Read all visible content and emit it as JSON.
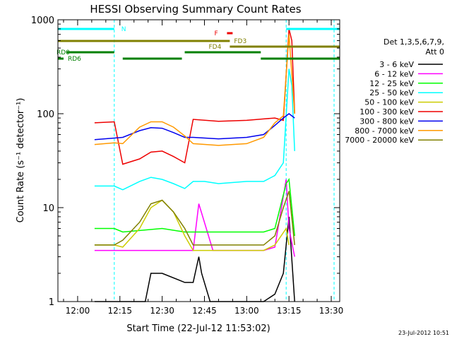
{
  "chart_data": {
    "type": "line",
    "title": "HESSI Observing Summary Count Rates",
    "xlabel": "Start Time (22-Jul-12 11:53:02)",
    "ylabel": "Count Rate (s⁻¹ detector⁻¹)",
    "yscale": "log",
    "ylim": [
      1,
      1000
    ],
    "xlim": [
      "11:53",
      "13:33"
    ],
    "x_ticks": [
      "12:00",
      "12:15",
      "12:30",
      "12:45",
      "13:00",
      "13:15",
      "13:30"
    ],
    "y_ticks": [
      "1",
      "10",
      "100",
      "1000"
    ],
    "legend_title": [
      "Det 1,3,5,6,7,9,",
      "Att 0"
    ],
    "legend_placement": "right",
    "footer_date": "23-Jul-2012 10:51",
    "series": [
      {
        "name": "3 - 6 keV",
        "color": "#000000",
        "x": [
          "12:06",
          "12:13",
          "12:16",
          "12:24",
          "12:26",
          "12:30",
          "12:38",
          "12:41",
          "12:43",
          "12:44",
          "12:47",
          "13:06",
          "13:10",
          "13:13",
          "13:15",
          "13:17"
        ],
        "y": [
          1,
          1,
          1,
          1,
          2,
          2,
          1.6,
          1.6,
          3,
          2,
          1,
          1,
          1.2,
          2,
          8,
          1
        ]
      },
      {
        "name": "6 - 12 keV",
        "color": "#ff00ff",
        "x": [
          "12:06",
          "12:13",
          "12:16",
          "12:30",
          "12:38",
          "12:41",
          "12:43",
          "12:48",
          "13:06",
          "13:10",
          "13:14",
          "13:15",
          "13:17"
        ],
        "y": [
          3.5,
          3.5,
          3.5,
          3.5,
          3.5,
          3.5,
          11,
          3.5,
          3.5,
          3.8,
          20,
          6,
          3
        ]
      },
      {
        "name": "12 - 25 keV",
        "color": "#00ff00",
        "x": [
          "12:06",
          "12:13",
          "12:16",
          "12:30",
          "12:38",
          "12:41",
          "12:48",
          "13:06",
          "13:10",
          "13:14",
          "13:15",
          "13:17"
        ],
        "y": [
          6,
          6,
          5.5,
          6,
          5.5,
          5.5,
          5.5,
          5.5,
          6,
          18,
          20,
          5
        ]
      },
      {
        "name": "25 - 50 keV",
        "color": "#00ffff",
        "x": [
          "12:06",
          "12:13",
          "12:16",
          "12:22",
          "12:26",
          "12:30",
          "12:34",
          "12:38",
          "12:41",
          "12:45",
          "12:50",
          "13:00",
          "13:06",
          "13:10",
          "13:13",
          "13:15",
          "13:16",
          "13:17"
        ],
        "y": [
          17,
          17,
          15.5,
          19,
          21,
          20,
          18,
          16,
          19,
          19,
          18,
          19,
          19,
          22,
          30,
          300,
          200,
          40
        ]
      },
      {
        "name": "50 - 100 keV",
        "color": "#cccc00",
        "x": [
          "12:06",
          "12:13",
          "12:16",
          "12:22",
          "12:26",
          "12:30",
          "12:34",
          "12:38",
          "12:41",
          "13:06",
          "13:10",
          "13:14",
          "13:15"
        ],
        "y": [
          4,
          4,
          3.8,
          6,
          10,
          12,
          9,
          5,
          3.5,
          3.5,
          4,
          6,
          4
        ]
      },
      {
        "name": "100 - 300 keV",
        "color": "#ee0000",
        "x": [
          "12:06",
          "12:13",
          "12:16",
          "12:22",
          "12:26",
          "12:30",
          "12:34",
          "12:38",
          "12:41",
          "12:50",
          "13:00",
          "13:06",
          "13:10",
          "13:13",
          "13:15",
          "13:16",
          "13:17"
        ],
        "y": [
          80,
          82,
          29,
          33,
          39,
          40,
          35,
          30,
          87,
          83,
          85,
          88,
          90,
          85,
          800,
          600,
          100
        ]
      },
      {
        "name": "300 - 800 keV",
        "color": "#0000ee",
        "x": [
          "12:06",
          "12:13",
          "12:16",
          "12:22",
          "12:26",
          "12:30",
          "12:34",
          "12:38",
          "12:41",
          "12:50",
          "13:00",
          "13:06",
          "13:10",
          "13:13",
          "13:15",
          "13:17"
        ],
        "y": [
          53,
          55,
          56,
          66,
          71,
          70,
          63,
          56,
          56,
          54,
          56,
          60,
          75,
          90,
          100,
          90
        ]
      },
      {
        "name": "800 - 7000 keV",
        "color": "#ff9900",
        "x": [
          "12:06",
          "12:13",
          "12:16",
          "12:22",
          "12:26",
          "12:30",
          "12:34",
          "12:38",
          "12:41",
          "12:50",
          "13:00",
          "13:06",
          "13:10",
          "13:13",
          "13:15",
          "13:17"
        ],
        "y": [
          47,
          49,
          48,
          72,
          82,
          82,
          72,
          58,
          48,
          46,
          48,
          56,
          80,
          95,
          700,
          100
        ]
      },
      {
        "name": "7000 - 20000 keV",
        "color": "#808000",
        "x": [
          "12:06",
          "12:13",
          "12:16",
          "12:22",
          "12:26",
          "12:30",
          "12:34",
          "12:38",
          "12:41",
          "12:50",
          "13:00",
          "13:06",
          "13:10",
          "13:13",
          "13:15",
          "13:17"
        ],
        "y": [
          4,
          4,
          4.5,
          7,
          11,
          12,
          9,
          6,
          4,
          4,
          4,
          4,
          5,
          10,
          15,
          4
        ]
      }
    ],
    "flag_bars": [
      {
        "name": "N",
        "color": "#00ffff",
        "segments": [
          [
            "11:53",
            "12:13"
          ],
          [
            "13:14",
            "13:33"
          ]
        ],
        "label_at": "12:15"
      },
      {
        "name": "F",
        "color": "#ee0000",
        "segments": [
          [
            "12:53",
            "12:55"
          ]
        ],
        "label_at": "12:48"
      },
      {
        "name": "FD3",
        "color": "#808000",
        "segments": [
          [
            "11:53",
            "12:54"
          ]
        ],
        "label_at": "12:55"
      },
      {
        "name": "FD4",
        "color": "#808000",
        "segments": [
          [
            "12:54",
            "13:33"
          ]
        ],
        "label_at": "12:46"
      },
      {
        "name": "RD0",
        "color": "#008000",
        "segments": [
          [
            "11:56",
            "12:13"
          ],
          [
            "12:38",
            "13:05"
          ]
        ],
        "label_at": "11:52"
      },
      {
        "name": "RD6",
        "color": "#008000",
        "segments": [
          [
            "11:53",
            "11:55"
          ],
          [
            "12:16",
            "12:37"
          ],
          [
            "13:05",
            "13:33"
          ]
        ],
        "label_at": "11:56"
      }
    ],
    "vlines": [
      "12:13",
      "13:14",
      "13:31"
    ]
  }
}
